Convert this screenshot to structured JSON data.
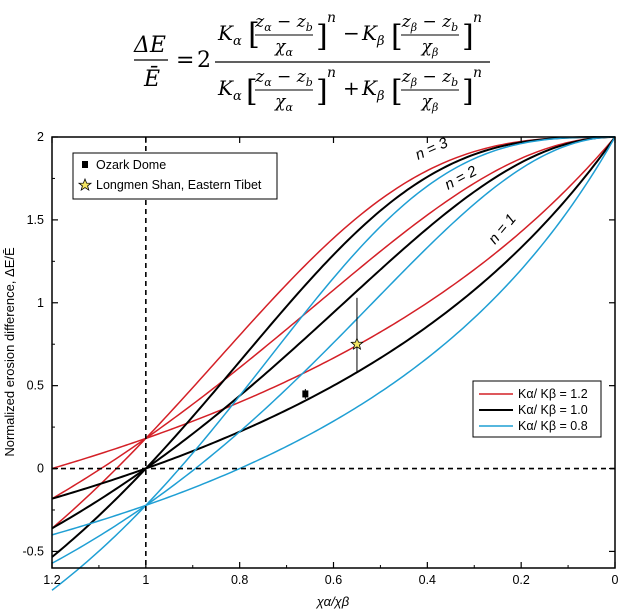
{
  "equation": {
    "lhs_num": "ΔE",
    "lhs_den": "Ē",
    "coef": "2"
  },
  "chart_data": {
    "type": "line",
    "title": "",
    "xlabel": "χα/χβ",
    "ylabel": "Normalized erosion difference, ΔE/Ē",
    "xlim": [
      1.2,
      0
    ],
    "ylim": [
      -0.6,
      2
    ],
    "x_ticks": [
      "1.2",
      "1",
      "0.8",
      "0.6",
      "0.4",
      "0.2",
      "0"
    ],
    "y_ticks": [
      "2",
      "1.5",
      "1",
      "0.5",
      "0",
      "-0.5"
    ],
    "x_reversed": true,
    "reference_lines": [
      {
        "axis": "x",
        "value": 1.0,
        "style": "dashed"
      },
      {
        "axis": "y",
        "value": 0.0,
        "style": "dashed"
      }
    ],
    "curve_labels": [
      "n = 3",
      "n = 2",
      "n = 1"
    ],
    "n_values": [
      1,
      2,
      3
    ],
    "ratio_series": [
      {
        "name": "Kα/ Kβ = 1.2",
        "ratio": 1.2,
        "color": "#d42027"
      },
      {
        "name": "Kα/ Kβ = 1.0",
        "ratio": 1.0,
        "color": "#000000"
      },
      {
        "name": "Kα/ Kβ = 0.8",
        "ratio": 0.8,
        "color": "#1f9fd4"
      }
    ],
    "points": [
      {
        "name": "Ozark Dome",
        "x": 0.66,
        "y": 0.45,
        "marker": "square",
        "yerr": 0.03,
        "color": "#000000"
      },
      {
        "name": "Longmen Shan, Eastern Tibet",
        "x": 0.55,
        "y": 0.75,
        "marker": "star",
        "yerr": [
          0.28,
          0.17
        ],
        "color": "#f5e663"
      }
    ],
    "legend_top_left": [
      "Ozark Dome",
      "Longmen Shan, Eastern Tibet"
    ],
    "legend_bottom_right": [
      "Kα/ Kβ = 1.2",
      "Kα/ Kβ = 1.0",
      "Kα/ Kβ = 0.8"
    ],
    "grid": false
  }
}
